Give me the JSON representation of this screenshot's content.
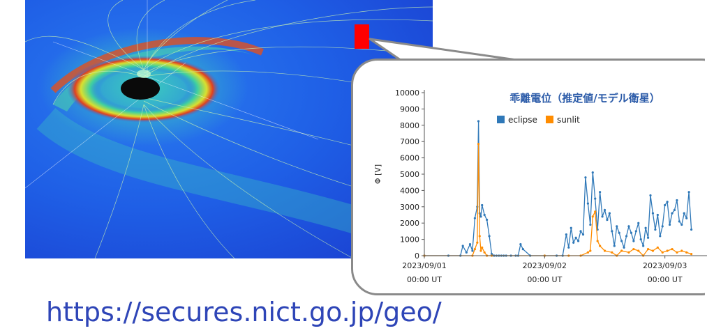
{
  "url_text": "https://secures.nict.go.jp/geo/",
  "colors": {
    "eclipse": "#2f78b8",
    "sunlit": "#ff8c00",
    "marker": "#ff0000",
    "url": "#2e45b7",
    "title": "#2a5aa8"
  },
  "chart_data": {
    "type": "line",
    "title": "乖離電位（推定値/モデル衛星）",
    "ylabel": "Φ [V]",
    "xlabel": "",
    "ylim": [
      0,
      10000
    ],
    "y_ticks": [
      "0",
      "1000",
      "2000",
      "3000",
      "4000",
      "5000",
      "6000",
      "7000",
      "8000",
      "9000",
      "10000"
    ],
    "x_ticks": [
      {
        "date": "2023/09/01",
        "time": "00:00 UT"
      },
      {
        "date": "2023/09/02",
        "time": "00:00 UT"
      },
      {
        "date": "2023/09/03",
        "time": "00:00 UT"
      }
    ],
    "legend": [
      "eclipse",
      "sunlit"
    ],
    "legend_position": "top",
    "series": [
      {
        "name": "eclipse",
        "x": [
          0.0,
          0.2,
          0.3,
          0.32,
          0.35,
          0.38,
          0.4,
          0.42,
          0.44,
          0.45,
          0.46,
          0.47,
          0.48,
          0.5,
          0.52,
          0.54,
          0.56,
          0.58,
          0.6,
          0.62,
          0.64,
          0.66,
          0.68,
          0.72,
          0.76,
          0.78,
          0.8,
          0.82,
          0.88,
          1.0,
          1.1,
          1.15,
          1.18,
          1.2,
          1.22,
          1.24,
          1.26,
          1.28,
          1.3,
          1.32,
          1.34,
          1.36,
          1.38,
          1.4,
          1.42,
          1.44,
          1.46,
          1.48,
          1.5,
          1.52,
          1.54,
          1.56,
          1.58,
          1.6,
          1.62,
          1.64,
          1.66,
          1.68,
          1.7,
          1.72,
          1.74,
          1.76,
          1.78,
          1.8,
          1.82,
          1.84,
          1.86,
          1.88,
          1.9,
          1.92,
          1.94,
          1.96,
          1.98,
          2.0,
          2.02,
          2.04,
          2.06,
          2.08,
          2.1,
          2.12,
          2.14,
          2.16,
          2.18,
          2.2,
          2.22
        ],
        "y": [
          0,
          0,
          0,
          600,
          200,
          700,
          300,
          2300,
          3000,
          8250,
          2600,
          2400,
          3100,
          2500,
          2200,
          1200,
          100,
          0,
          0,
          0,
          0,
          0,
          0,
          0,
          0,
          0,
          700,
          400,
          0,
          0,
          0,
          0,
          1300,
          500,
          1700,
          800,
          1100,
          900,
          1500,
          1300,
          4800,
          3200,
          1900,
          5100,
          3500,
          1600,
          3900,
          2400,
          2800,
          2200,
          2600,
          1500,
          600,
          1800,
          1400,
          900,
          500,
          1200,
          1800,
          1400,
          900,
          1500,
          2000,
          1000,
          600,
          1700,
          1100,
          3700,
          2600,
          1600,
          2500,
          1200,
          1800,
          3100,
          3300,
          1900,
          2600,
          2800,
          3400,
          2100,
          1900,
          2600,
          2300,
          3900,
          1600
        ]
      },
      {
        "name": "sunlit",
        "x": [
          0.0,
          0.4,
          0.42,
          0.44,
          0.45,
          0.46,
          0.47,
          0.48,
          0.5,
          0.52,
          0.56,
          1.0,
          1.2,
          1.3,
          1.36,
          1.38,
          1.4,
          1.42,
          1.44,
          1.46,
          1.5,
          1.56,
          1.6,
          1.64,
          1.7,
          1.74,
          1.78,
          1.82,
          1.86,
          1.9,
          1.94,
          1.98,
          2.02,
          2.06,
          2.1,
          2.14,
          2.18,
          2.22
        ],
        "y": [
          0,
          0,
          400,
          800,
          6850,
          1200,
          300,
          500,
          200,
          0,
          0,
          0,
          0,
          0,
          200,
          300,
          2400,
          2700,
          900,
          600,
          300,
          200,
          0,
          300,
          200,
          400,
          300,
          0,
          400,
          300,
          500,
          200,
          300,
          400,
          200,
          300,
          200,
          100
        ]
      }
    ]
  }
}
